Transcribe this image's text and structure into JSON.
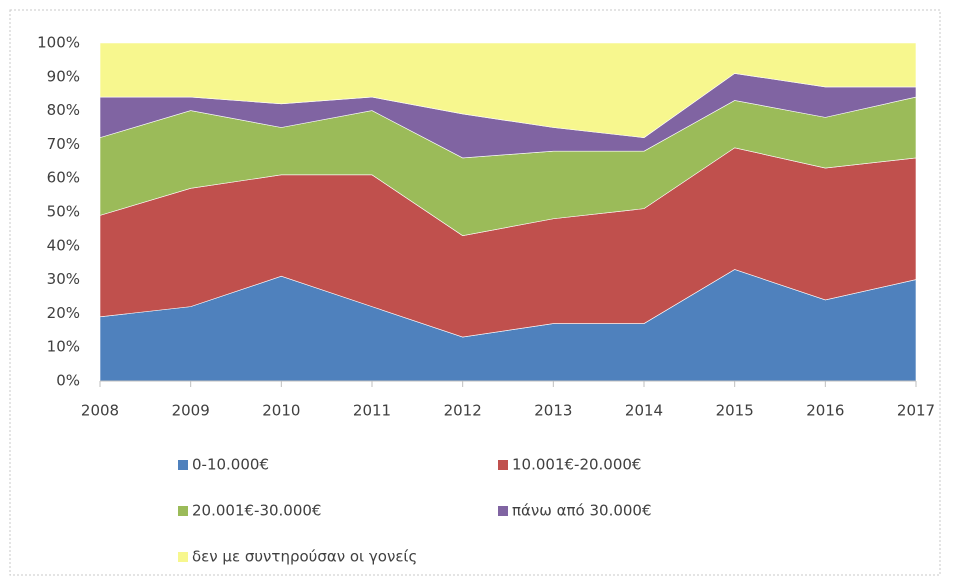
{
  "chart_data": {
    "type": "stacked-area",
    "categories": [
      "2008",
      "2009",
      "2010",
      "2011",
      "2012",
      "2013",
      "2014",
      "2015",
      "2016",
      "2017"
    ],
    "series": [
      {
        "name": "0-10.000€",
        "color": "#4f81bd",
        "values": [
          19,
          22,
          31,
          22,
          13,
          17,
          17,
          33,
          24,
          30
        ]
      },
      {
        "name": "10.001€-20.000€",
        "color": "#c0504d",
        "values": [
          30,
          35,
          30,
          39,
          30,
          31,
          34,
          36,
          39,
          36
        ]
      },
      {
        "name": "20.001€-30.000€",
        "color": "#9bbb59",
        "values": [
          23,
          23,
          14,
          19,
          23,
          20,
          17,
          14,
          15,
          18
        ]
      },
      {
        "name": "πάνω από 30.000€",
        "color": "#8064a2",
        "values": [
          12,
          4,
          7,
          4,
          13,
          7,
          4,
          8,
          9,
          3
        ]
      },
      {
        "name": "δεν με συντηρούσαν οι γονείς",
        "color": "#f7f78e",
        "values": [
          16,
          16,
          18,
          16,
          21,
          25,
          28,
          9,
          13,
          13
        ]
      }
    ],
    "ylim": [
      0,
      100
    ],
    "yticks": [
      {
        "value": 0,
        "label": "0%"
      },
      {
        "value": 10,
        "label": "10%"
      },
      {
        "value": 20,
        "label": "20%"
      },
      {
        "value": 30,
        "label": "30%"
      },
      {
        "value": 40,
        "label": "40%"
      },
      {
        "value": 50,
        "label": "50%"
      },
      {
        "value": 60,
        "label": "60%"
      },
      {
        "value": 70,
        "label": "70%"
      },
      {
        "value": 80,
        "label": "80%"
      },
      {
        "value": 90,
        "label": "90%"
      },
      {
        "value": 100,
        "label": "100%"
      }
    ],
    "grid": false
  }
}
